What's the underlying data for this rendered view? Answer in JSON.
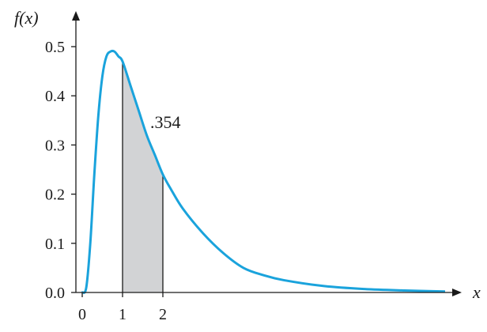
{
  "chart_data": {
    "type": "area",
    "title": "",
    "xlabel": "x",
    "ylabel": "f(x)",
    "x_ticks": [
      0,
      1,
      2
    ],
    "x_tick_labels": [
      "0",
      "1",
      "2"
    ],
    "y_ticks": [
      0.0,
      0.1,
      0.2,
      0.3,
      0.4,
      0.5
    ],
    "y_tick_labels": [
      "0.0",
      "0.1",
      "0.2",
      "0.3",
      "0.4",
      "0.5"
    ],
    "xlim": [
      0,
      9
    ],
    "ylim": [
      0,
      0.5
    ],
    "grid": false,
    "legend": "none",
    "series": [
      {
        "x": [
          0,
          0.1,
          0.2,
          0.3,
          0.4,
          0.5,
          0.6,
          0.7,
          0.8,
          0.9,
          1.0,
          1.2,
          1.4,
          1.6,
          1.8,
          2.0,
          2.2,
          2.5,
          3.0,
          3.5,
          4.0,
          4.5,
          5.0,
          6.0,
          7.0,
          8.0,
          9.0
        ],
        "y": [
          0.0,
          0.01,
          0.1,
          0.24,
          0.36,
          0.44,
          0.48,
          0.49,
          0.49,
          0.48,
          0.47,
          0.42,
          0.37,
          0.32,
          0.28,
          0.24,
          0.21,
          0.17,
          0.12,
          0.08,
          0.05,
          0.035,
          0.025,
          0.013,
          0.007,
          0.004,
          0.002
        ]
      }
    ],
    "shaded_region": {
      "x_from": 1,
      "x_to": 2,
      "label": ".354"
    },
    "colors": {
      "curve": "#1aa3dc",
      "shade": "#d2d3d5",
      "axis": "#1a1a1a"
    }
  }
}
